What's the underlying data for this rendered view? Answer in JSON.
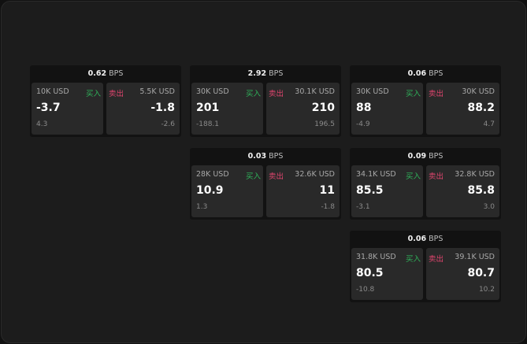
{
  "unit": "BPS",
  "buy_label": "买入",
  "sell_label": "卖出",
  "colors": {
    "buy": "#2fb35a",
    "sell": "#e0456e"
  },
  "cards": [
    {
      "spread": "0.62",
      "buy": {
        "size": "10K USD",
        "price": "-3.7",
        "change": "4.3"
      },
      "sell": {
        "size": "5.5K USD",
        "price": "-1.8",
        "change": "-2.6"
      }
    },
    {
      "spread": "2.92",
      "buy": {
        "size": "30K USD",
        "price": "201",
        "change": "-188.1"
      },
      "sell": {
        "size": "30.1K USD",
        "price": "210",
        "change": "196.5"
      }
    },
    {
      "spread": "0.06",
      "buy": {
        "size": "30K USD",
        "price": "88",
        "change": "-4.9"
      },
      "sell": {
        "size": "30K USD",
        "price": "88.2",
        "change": "4.7"
      }
    },
    {
      "spread": "0.03",
      "buy": {
        "size": "28K USD",
        "price": "10.9",
        "change": "1.3"
      },
      "sell": {
        "size": "32.6K USD",
        "price": "11",
        "change": "-1.8"
      }
    },
    {
      "spread": "0.09",
      "buy": {
        "size": "34.1K USD",
        "price": "85.5",
        "change": "-3.1"
      },
      "sell": {
        "size": "32.8K USD",
        "price": "85.8",
        "change": "3.0"
      }
    },
    {
      "spread": "0.06",
      "buy": {
        "size": "31.8K USD",
        "price": "80.5",
        "change": "-10.8"
      },
      "sell": {
        "size": "39.1K USD",
        "price": "80.7",
        "change": "10.2"
      }
    }
  ]
}
